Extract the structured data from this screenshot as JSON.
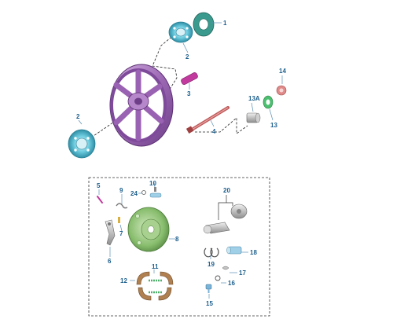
{
  "callouts": {
    "c1": "1",
    "c2_top": "2",
    "c2_left": "2",
    "c3": "3",
    "c4": "4",
    "c13a": "13A",
    "c13": "13",
    "c14": "14",
    "c5": "5",
    "c9": "9",
    "c24": "24",
    "c10": "10",
    "c7": "7",
    "c6": "6",
    "c8": "8",
    "c20": "20",
    "c18": "18",
    "c19": "19",
    "c11": "11",
    "c12": "12",
    "c17": "17",
    "c16": "16",
    "c15": "15"
  },
  "colors": {
    "callout_text": "#1b5e8c",
    "wheel_rim": "#a070b8",
    "bearing": "#5fc4d8",
    "seal": "#3a9a8e",
    "axle_spacer": "#c23a9e",
    "axle": "#c05a5a",
    "nut": "#e08a8a",
    "washer": "#4cc070",
    "brake_plate": "#8ac070",
    "brake_shoe": "#b08050",
    "cam_parts": "#b5b5b5",
    "spring": "#9ad2a0"
  }
}
